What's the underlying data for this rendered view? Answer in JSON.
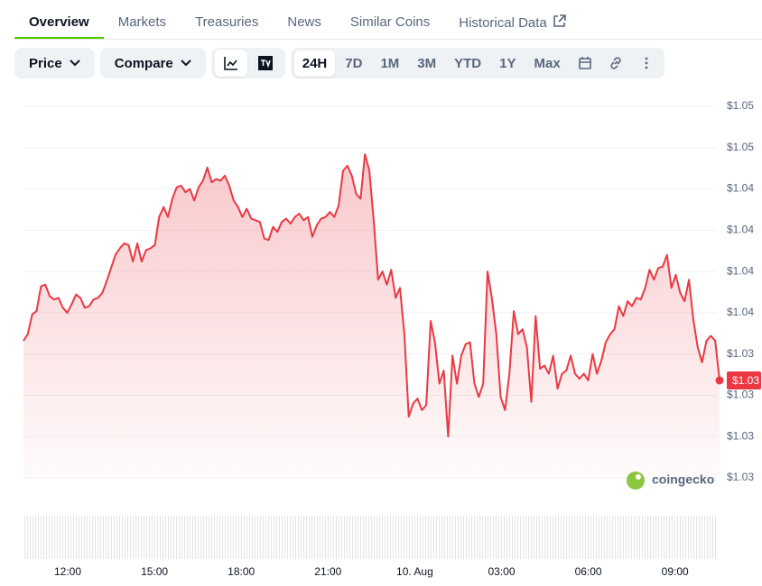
{
  "tabs": [
    "Overview",
    "Markets",
    "Treasuries",
    "News",
    "Similar Coins",
    "Historical Data"
  ],
  "toolbar": {
    "price": "Price",
    "compare": "Compare",
    "ranges": [
      "24H",
      "7D",
      "1M",
      "3M",
      "YTD",
      "1Y",
      "Max"
    ]
  },
  "chart_data": {
    "type": "line",
    "color": "#ea3943",
    "grid": true,
    "watermark": "coingecko",
    "ylim": [
      1.0255,
      1.048
    ],
    "yticks": [
      {
        "value": 1.048,
        "label": "$1.05"
      },
      {
        "value": 1.0455,
        "label": "$1.05"
      },
      {
        "value": 1.043,
        "label": "$1.04"
      },
      {
        "value": 1.0405,
        "label": "$1.04"
      },
      {
        "value": 1.038,
        "label": "$1.04"
      },
      {
        "value": 1.0355,
        "label": "$1.04"
      },
      {
        "value": 1.033,
        "label": "$1.03"
      },
      {
        "value": 1.0305,
        "label": "$1.03"
      },
      {
        "value": 1.028,
        "label": "$1.03"
      },
      {
        "value": 1.0255,
        "label": "$1.03"
      }
    ],
    "x_labels": [
      "12:00",
      "15:00",
      "18:00",
      "21:00",
      "10. Aug",
      "03:00",
      "06:00",
      "09:00"
    ],
    "values": [
      1.0338,
      1.0342,
      1.0354,
      1.0356,
      1.0371,
      1.0372,
      1.0365,
      1.0363,
      1.0364,
      1.0358,
      1.0355,
      1.036,
      1.0366,
      1.0364,
      1.0358,
      1.0359,
      1.0363,
      1.0364,
      1.0367,
      1.0374,
      1.0382,
      1.039,
      1.0394,
      1.0397,
      1.0396,
      1.0386,
      1.0397,
      1.0386,
      1.0393,
      1.0394,
      1.0396,
      1.0413,
      1.0419,
      1.0413,
      1.0424,
      1.0431,
      1.0432,
      1.0428,
      1.043,
      1.0423,
      1.0431,
      1.0435,
      1.0443,
      1.0434,
      1.0436,
      1.0435,
      1.0438,
      1.0432,
      1.0423,
      1.0419,
      1.0413,
      1.0418,
      1.0412,
      1.0411,
      1.041,
      1.04,
      1.0399,
      1.0407,
      1.0404,
      1.041,
      1.0412,
      1.0409,
      1.0413,
      1.0415,
      1.0411,
      1.0413,
      1.0401,
      1.0408,
      1.0412,
      1.0413,
      1.0416,
      1.0413,
      1.042,
      1.0441,
      1.0444,
      1.0438,
      1.0427,
      1.0424,
      1.0451,
      1.0441,
      1.0411,
      1.0375,
      1.038,
      1.0372,
      1.0381,
      1.0364,
      1.037,
      1.0342,
      1.0292,
      1.03,
      1.0303,
      1.0296,
      1.0299,
      1.035,
      1.0337,
      1.0312,
      1.032,
      1.028,
      1.0329,
      1.0312,
      1.0329,
      1.0336,
      1.0337,
      1.0312,
      1.0304,
      1.0312,
      1.038,
      1.0364,
      1.0342,
      1.0304,
      1.0296,
      1.0318,
      1.0356,
      1.0342,
      1.0345,
      1.0334,
      1.0301,
      1.0353,
      1.0321,
      1.0323,
      1.0318,
      1.0329,
      1.0309,
      1.0318,
      1.032,
      1.0329,
      1.0318,
      1.0315,
      1.0318,
      1.0314,
      1.033,
      1.0318,
      1.0326,
      1.0337,
      1.0342,
      1.0345,
      1.0359,
      1.0353,
      1.0362,
      1.0359,
      1.0364,
      1.0363,
      1.037,
      1.0381,
      1.0375,
      1.0382,
      1.0383,
      1.039,
      1.037,
      1.0378,
      1.0367,
      1.0362,
      1.0375,
      1.0351,
      1.0334,
      1.0325,
      1.0338,
      1.0341,
      1.0338,
      1.0314
    ],
    "value_labels": [
      null,
      null,
      null,
      null,
      null,
      null,
      null,
      null,
      null,
      null,
      null,
      null,
      null,
      null,
      null,
      null,
      null,
      null,
      null,
      null,
      null,
      null,
      null,
      null,
      null,
      null,
      null,
      null,
      null,
      null,
      null,
      null,
      null,
      null,
      null,
      null,
      null,
      null,
      null,
      null,
      null,
      null,
      null,
      null,
      null,
      null,
      null,
      null,
      null,
      null,
      null,
      null,
      null,
      null,
      null,
      null,
      null,
      null,
      null,
      null,
      null,
      null,
      null,
      null,
      null,
      null,
      null,
      null,
      null,
      null,
      null,
      null,
      null,
      null,
      null,
      null,
      null,
      null,
      null,
      null,
      null,
      null,
      null,
      null,
      null,
      null,
      null,
      null,
      null,
      null,
      null,
      null,
      null,
      null,
      null,
      null,
      null,
      null,
      null,
      null,
      null,
      null,
      null,
      null,
      null,
      null,
      null,
      null,
      null,
      null,
      null,
      null,
      null,
      null,
      null,
      null,
      null,
      null,
      null,
      null,
      null,
      null,
      null,
      null,
      null,
      null,
      null,
      null,
      null,
      null,
      null,
      null,
      null,
      null,
      null,
      null,
      null,
      null,
      null,
      null,
      null,
      null,
      null,
      null,
      null,
      null,
      null,
      null,
      null,
      null,
      null,
      null,
      null,
      null,
      null,
      null,
      null,
      null,
      null,
      "$1.03"
    ]
  }
}
